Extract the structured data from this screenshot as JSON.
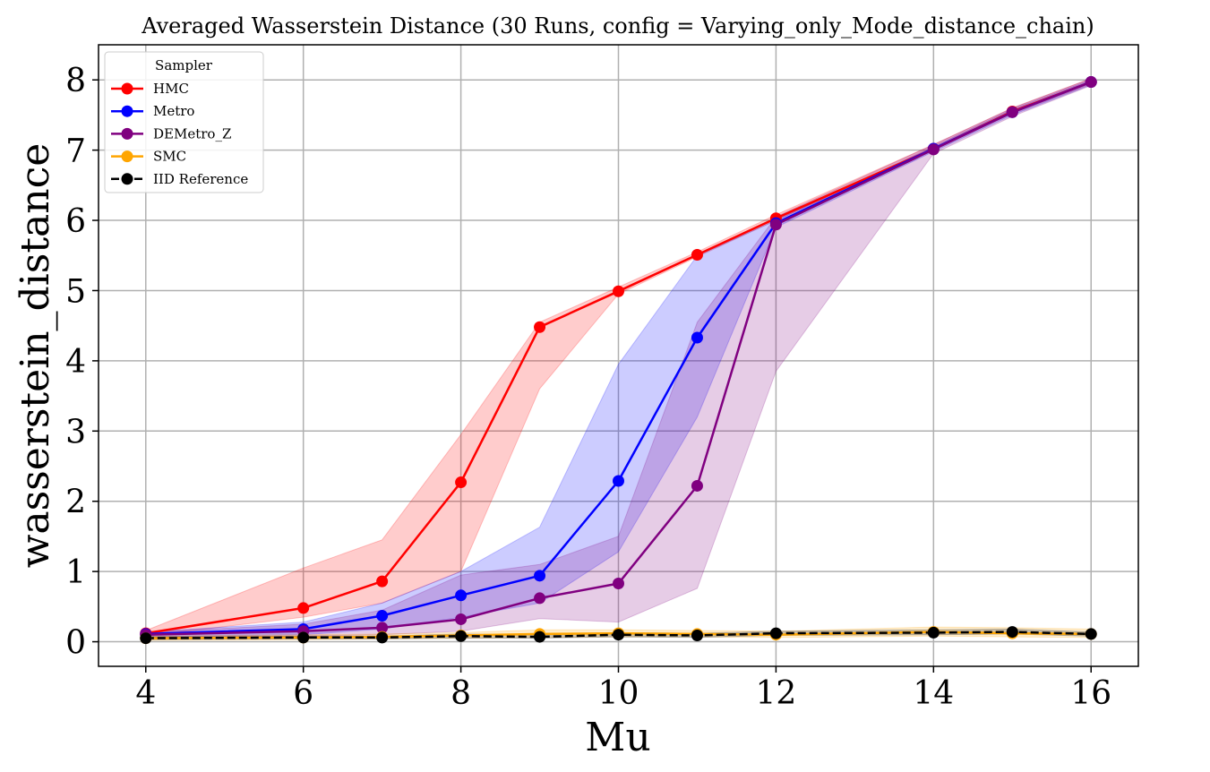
{
  "chart_data": {
    "type": "line",
    "title": "Averaged Wasserstein Distance (30 Runs, config = Varying_only_Mode_distance_chain)",
    "xlabel": "Mu",
    "ylabel": "wasserstein_distance",
    "xlim": [
      3.4,
      16.6
    ],
    "ylim": [
      -0.35,
      8.5
    ],
    "xticks": [
      4,
      6,
      8,
      10,
      12,
      14,
      16
    ],
    "yticks": [
      0,
      1,
      2,
      3,
      4,
      5,
      6,
      7,
      8
    ],
    "x": [
      4,
      6,
      7,
      8,
      9,
      10,
      11,
      12,
      14,
      15,
      16
    ],
    "grid": true,
    "legend_placement": "upper-left",
    "legend_title": "Sampler",
    "series": [
      {
        "name": "HMC",
        "color": "#ff0000",
        "dashed": false,
        "values": [
          0.12,
          0.48,
          0.86,
          2.27,
          4.48,
          4.99,
          5.51,
          6.03,
          7.02,
          7.55,
          7.97
        ],
        "lower": [
          0.08,
          0.35,
          0.55,
          1.0,
          3.6,
          4.95,
          5.48,
          6.0,
          7.0,
          7.52,
          7.94
        ],
        "upper": [
          0.16,
          1.05,
          1.45,
          2.95,
          4.55,
          5.05,
          5.55,
          6.08,
          7.08,
          7.6,
          8.02
        ]
      },
      {
        "name": "Metro",
        "color": "#0000ff",
        "dashed": false,
        "values": [
          0.11,
          0.18,
          0.37,
          0.66,
          0.94,
          2.29,
          4.33,
          5.96,
          7.02,
          7.54,
          7.97
        ],
        "lower": [
          0.07,
          0.1,
          0.18,
          0.35,
          0.55,
          1.28,
          3.2,
          5.9,
          6.98,
          7.5,
          7.93
        ],
        "upper": [
          0.14,
          0.28,
          0.55,
          1.0,
          1.63,
          3.95,
          5.5,
          6.0,
          7.05,
          7.58,
          8.0
        ]
      },
      {
        "name": "DEMetro_Z",
        "color": "#800080",
        "dashed": false,
        "values": [
          0.1,
          0.15,
          0.2,
          0.32,
          0.62,
          0.83,
          2.22,
          5.94,
          7.01,
          7.54,
          7.97
        ],
        "lower": [
          0.06,
          0.08,
          0.1,
          0.15,
          0.33,
          0.28,
          0.76,
          3.85,
          6.95,
          7.48,
          7.92
        ],
        "upper": [
          0.13,
          0.25,
          0.45,
          0.95,
          1.1,
          1.5,
          4.55,
          6.05,
          7.08,
          7.6,
          8.02
        ]
      },
      {
        "name": "SMC",
        "color": "#ffa500",
        "dashed": false,
        "values": [
          0.05,
          0.06,
          0.07,
          0.09,
          0.11,
          0.12,
          0.11,
          0.1,
          0.14,
          0.12,
          0.11
        ],
        "lower": [
          0.02,
          0.03,
          0.04,
          0.05,
          0.06,
          0.07,
          0.07,
          0.06,
          0.08,
          0.07,
          0.06
        ],
        "upper": [
          0.08,
          0.1,
          0.11,
          0.13,
          0.17,
          0.17,
          0.16,
          0.15,
          0.21,
          0.2,
          0.18
        ]
      },
      {
        "name": "IID Reference",
        "color": "#000000",
        "dashed": true,
        "values": [
          0.05,
          0.06,
          0.06,
          0.08,
          0.07,
          0.1,
          0.09,
          0.12,
          0.13,
          0.14,
          0.11
        ],
        "lower": [
          0.03,
          0.04,
          0.04,
          0.05,
          0.05,
          0.07,
          0.06,
          0.09,
          0.1,
          0.11,
          0.08
        ],
        "upper": [
          0.07,
          0.08,
          0.08,
          0.11,
          0.1,
          0.13,
          0.12,
          0.15,
          0.17,
          0.18,
          0.14
        ]
      }
    ]
  }
}
